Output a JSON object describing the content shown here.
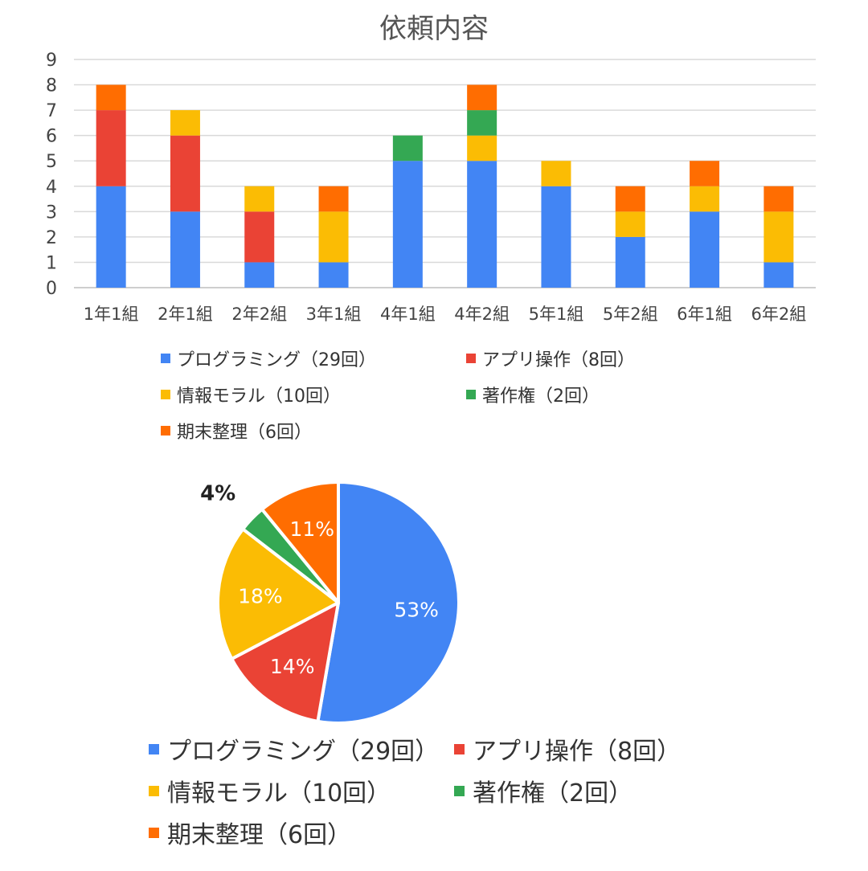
{
  "chart_data": [
    {
      "type": "bar",
      "stacked": true,
      "title": "依頼内容",
      "categories": [
        "1年1組",
        "2年1組",
        "2年2組",
        "3年1組",
        "4年1組",
        "4年2組",
        "5年1組",
        "5年2組",
        "6年1組",
        "6年2組"
      ],
      "series": [
        {
          "name": "プログラミング（29回）",
          "color": "#4285F4",
          "values": [
            4,
            3,
            1,
            1,
            5,
            5,
            4,
            2,
            3,
            1
          ]
        },
        {
          "name": "アプリ操作（8回）",
          "color": "#EA4335",
          "values": [
            3,
            3,
            2,
            0,
            0,
            0,
            0,
            0,
            0,
            0
          ]
        },
        {
          "name": "情報モラル（10回）",
          "color": "#FBBC04",
          "values": [
            0,
            1,
            1,
            2,
            0,
            1,
            1,
            1,
            1,
            2
          ]
        },
        {
          "name": "著作権（2回）",
          "color": "#34A853",
          "values": [
            0,
            0,
            0,
            0,
            1,
            1,
            0,
            0,
            0,
            0
          ]
        },
        {
          "name": "期末整理（6回）",
          "color": "#FF6D01",
          "values": [
            1,
            0,
            0,
            1,
            0,
            1,
            0,
            1,
            1,
            1
          ]
        }
      ],
      "ylim": [
        0,
        9
      ],
      "yticks": [
        "0",
        "1",
        "2",
        "3",
        "4",
        "5",
        "6",
        "7",
        "8",
        "9"
      ],
      "grid": true,
      "legend": "bottom"
    },
    {
      "type": "pie",
      "slices": [
        {
          "name": "プログラミング（29回）",
          "color": "#4285F4",
          "value": 29,
          "label": "53%"
        },
        {
          "name": "アプリ操作（8回）",
          "color": "#EA4335",
          "value": 8,
          "label": "14%"
        },
        {
          "name": "情報モラル（10回）",
          "color": "#FBBC04",
          "value": 10,
          "label": "18%"
        },
        {
          "name": "著作権（2回）",
          "color": "#34A853",
          "value": 2,
          "label": "4%"
        },
        {
          "name": "期末整理（6回）",
          "color": "#FF6D01",
          "value": 6,
          "label": "11%"
        }
      ],
      "legend": "bottom"
    }
  ]
}
